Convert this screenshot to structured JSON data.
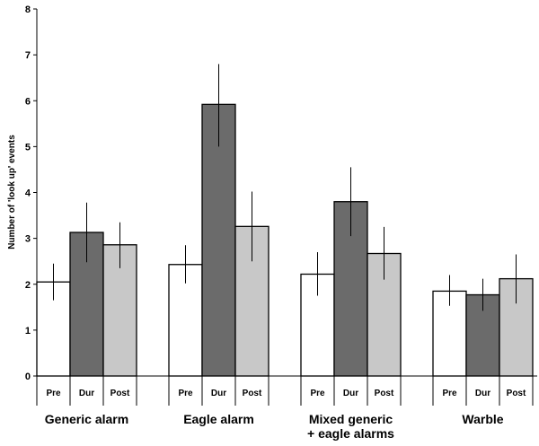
{
  "chart_data": {
    "type": "bar",
    "ylabel": "Number of 'look up' events",
    "ylim": [
      0,
      8
    ],
    "yticks": [
      "0",
      "1",
      "2",
      "3",
      "4",
      "5",
      "6",
      "7",
      "8"
    ],
    "grid": false,
    "groups": [
      {
        "label": [
          "Generic alarm"
        ]
      },
      {
        "label": [
          "Eagle alarm"
        ]
      },
      {
        "label": [
          "Mixed generic",
          "+ eagle alarms"
        ]
      },
      {
        "label": [
          "Warble"
        ]
      }
    ],
    "subcategories": [
      "Pre",
      "Dur",
      "Post"
    ],
    "series": [
      {
        "name": "Pre",
        "color": "#ffffff",
        "values": [
          2.05,
          2.43,
          2.22,
          1.85
        ],
        "err_low": [
          1.65,
          2.02,
          1.75,
          1.53
        ],
        "err_high": [
          2.45,
          2.85,
          2.7,
          2.2
        ]
      },
      {
        "name": "Dur",
        "color": "#6b6b6b",
        "values": [
          3.13,
          5.92,
          3.8,
          1.77
        ],
        "err_low": [
          2.48,
          5.0,
          3.05,
          1.42
        ],
        "err_high": [
          3.78,
          6.8,
          4.55,
          2.12
        ]
      },
      {
        "name": "Post",
        "color": "#c8c8c8",
        "values": [
          2.86,
          3.26,
          2.67,
          2.12
        ],
        "err_low": [
          2.35,
          2.5,
          2.1,
          1.58
        ],
        "err_high": [
          3.35,
          4.02,
          3.25,
          2.65
        ]
      }
    ]
  }
}
